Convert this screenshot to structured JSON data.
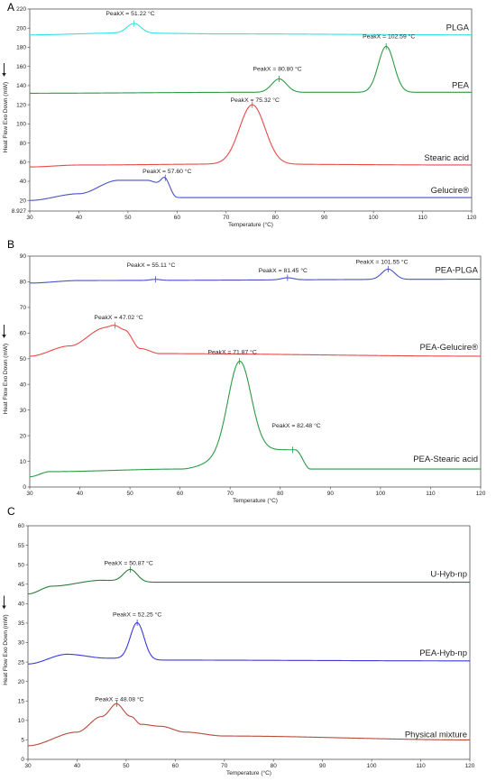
{
  "chart_data": [
    {
      "type": "line",
      "panel_label": "A",
      "xlabel": "Temperature (°C)",
      "ylabel": "Heat Flow Exo Down (mW)",
      "xlim": [
        30,
        120
      ],
      "ylim": [
        8.927,
        220
      ],
      "x_ticks": [
        30,
        40,
        50,
        60,
        70,
        80,
        90,
        100,
        110,
        120
      ],
      "y_ticks": [
        "8.927",
        "20",
        "40",
        "60",
        "80",
        "100",
        "120",
        "140",
        "160",
        "180",
        "200",
        "220"
      ],
      "series": [
        {
          "name": "PLGA",
          "color": "#35e0e0",
          "baseline": [
            [
              30,
              193
            ],
            [
              49,
              195
            ],
            [
              70,
              194
            ],
            [
              120,
              193
            ]
          ],
          "peaks": [
            {
              "x": 51.22,
              "h": 10,
              "w": 1.4
            }
          ],
          "annotations": [
            {
              "text": "PeakX = 51.22 °C",
              "x": 51.22
            }
          ]
        },
        {
          "name": "PEA",
          "color": "#2e9a46",
          "baseline": [
            [
              30,
              132
            ],
            [
              75,
              133
            ],
            [
              120,
              133
            ]
          ],
          "peaks": [
            {
              "x": 80.8,
              "h": 14,
              "w": 1.5
            },
            {
              "x": 102.59,
              "h": 48,
              "w": 1.6
            }
          ],
          "annotations": [
            {
              "text": "PeakX = 80.80 °C",
              "x": 80.8
            },
            {
              "text": "PeakX = 102.59 °C",
              "x": 102.59
            }
          ]
        },
        {
          "name": "Stearic acid",
          "color": "#e84a4a",
          "baseline": [
            [
              30,
              55
            ],
            [
              40,
              57
            ],
            [
              70,
              58
            ],
            [
              120,
              57
            ]
          ],
          "peaks": [
            {
              "x": 75.32,
              "h": 62,
              "w": 2.6
            }
          ],
          "annotations": [
            {
              "text": "PeakX = 75.32 °C",
              "x": 75.32
            }
          ]
        },
        {
          "name": "Gelucire®",
          "color": "#4a52c8",
          "baseline": [
            [
              30,
              20
            ],
            [
              40,
              27
            ],
            [
              48,
              41
            ],
            [
              54,
              41
            ],
            [
              57,
              36
            ],
            [
              60,
              23
            ],
            [
              120,
              23
            ]
          ],
          "peaks": [
            {
              "x": 57.6,
              "h": 9,
              "w": 0.9
            }
          ],
          "annotations": [
            {
              "text": "PeakX = 57.60 °C",
              "x": 57.6
            }
          ]
        }
      ]
    },
    {
      "type": "line",
      "panel_label": "B",
      "xlabel": "Temperature (°C)",
      "ylabel": "Heat Flow Exo Down (mW)",
      "xlim": [
        30,
        120
      ],
      "ylim": [
        0,
        90
      ],
      "x_ticks": [
        30,
        40,
        50,
        60,
        70,
        80,
        90,
        100,
        110,
        120
      ],
      "y_ticks": [
        "0",
        "10",
        "20",
        "30",
        "40",
        "50",
        "60",
        "70",
        "80",
        "90"
      ],
      "series": [
        {
          "name": "PEA-PLGA",
          "color": "#4a52c8",
          "baseline": [
            [
              30,
              79.5
            ],
            [
              40,
              80.5
            ],
            [
              120,
              81
            ]
          ],
          "peaks": [
            {
              "x": 55.11,
              "h": 0.4,
              "w": 1.0
            },
            {
              "x": 81.45,
              "h": 0.8,
              "w": 1.2
            },
            {
              "x": 101.55,
              "h": 4,
              "w": 1.3
            }
          ],
          "annotations": [
            {
              "text": "PeakX = 55.11 °C",
              "x": 55.11
            },
            {
              "text": "PeakX = 81.45 °C",
              "x": 81.45
            },
            {
              "text": "PeakX = 101.55 °C",
              "x": 101.55
            }
          ]
        },
        {
          "name": "PEA-Gelucire®",
          "color": "#e84a4a",
          "baseline": [
            [
              30,
              51
            ],
            [
              38,
              55
            ],
            [
              45,
              62
            ],
            [
              49,
              61
            ],
            [
              52,
              54
            ],
            [
              56,
              52
            ],
            [
              120,
              51
            ]
          ],
          "peaks": [
            {
              "x": 47.02,
              "h": 1.5,
              "w": 1.0
            }
          ],
          "annotations": [
            {
              "text": "PeakX = 47.02 °C",
              "x": 47.02
            }
          ]
        },
        {
          "name": "PEA-Stearic acid",
          "color": "#2e9a46",
          "baseline": [
            [
              30,
              4
            ],
            [
              34,
              6
            ],
            [
              60,
              7
            ],
            [
              74,
              14.5
            ],
            [
              83,
              14.5
            ],
            [
              86,
              7
            ],
            [
              120,
              7
            ]
          ],
          "peaks": [
            {
              "x": 71.87,
              "h": 35,
              "w": 2.3
            }
          ],
          "annotations": [
            {
              "text": "PeakX = 71.87 °C",
              "x": 71.87
            },
            {
              "text": "PeakX = 82.48 °C",
              "x": 82.48
            }
          ]
        }
      ]
    },
    {
      "type": "line",
      "panel_label": "C",
      "xlabel": "Temperature (°C)",
      "ylabel": "Heat Flow Exo Down (mW)",
      "xlim": [
        30,
        120
      ],
      "ylim": [
        0,
        60
      ],
      "x_ticks": [
        30,
        40,
        50,
        60,
        70,
        80,
        90,
        100,
        110,
        120
      ],
      "y_ticks": [
        "0",
        "5",
        "10",
        "15",
        "20",
        "25",
        "30",
        "35",
        "40",
        "45",
        "50",
        "55",
        "60"
      ],
      "series": [
        {
          "name": "U-Hyb-np",
          "color": "#2e7d3e",
          "baseline": [
            [
              30,
              42.5
            ],
            [
              35,
              44.5
            ],
            [
              45,
              46
            ],
            [
              53,
              45.5
            ],
            [
              120,
              45.5
            ]
          ],
          "peaks": [
            {
              "x": 50.87,
              "h": 3.2,
              "w": 1.4
            }
          ],
          "annotations": [
            {
              "text": "PeakX = 50.87 °C",
              "x": 50.87
            }
          ]
        },
        {
          "name": "PEA-Hyb-np",
          "color": "#3a3ad8",
          "baseline": [
            [
              30,
              24.5
            ],
            [
              38,
              27
            ],
            [
              46,
              26
            ],
            [
              55,
              25.5
            ],
            [
              120,
              25.3
            ]
          ],
          "peaks": [
            {
              "x": 52.25,
              "h": 9.5,
              "w": 1.4
            }
          ],
          "annotations": [
            {
              "text": "PeakX = 52.25 °C",
              "x": 52.25
            }
          ]
        },
        {
          "name": "Physical mixture",
          "color": "#b84a3a",
          "baseline": [
            [
              30,
              3.5
            ],
            [
              40,
              7
            ],
            [
              45,
              11
            ],
            [
              48,
              13.5
            ],
            [
              51,
              11
            ],
            [
              53,
              9
            ],
            [
              57,
              8.5
            ],
            [
              62,
              7
            ],
            [
              70,
              6
            ],
            [
              120,
              5
            ]
          ],
          "peaks": [
            {
              "x": 48.08,
              "h": 0.8,
              "w": 1.0
            }
          ],
          "annotations": [
            {
              "text": "PeakX = 48.08 °C",
              "x": 48.08
            }
          ]
        }
      ]
    }
  ]
}
